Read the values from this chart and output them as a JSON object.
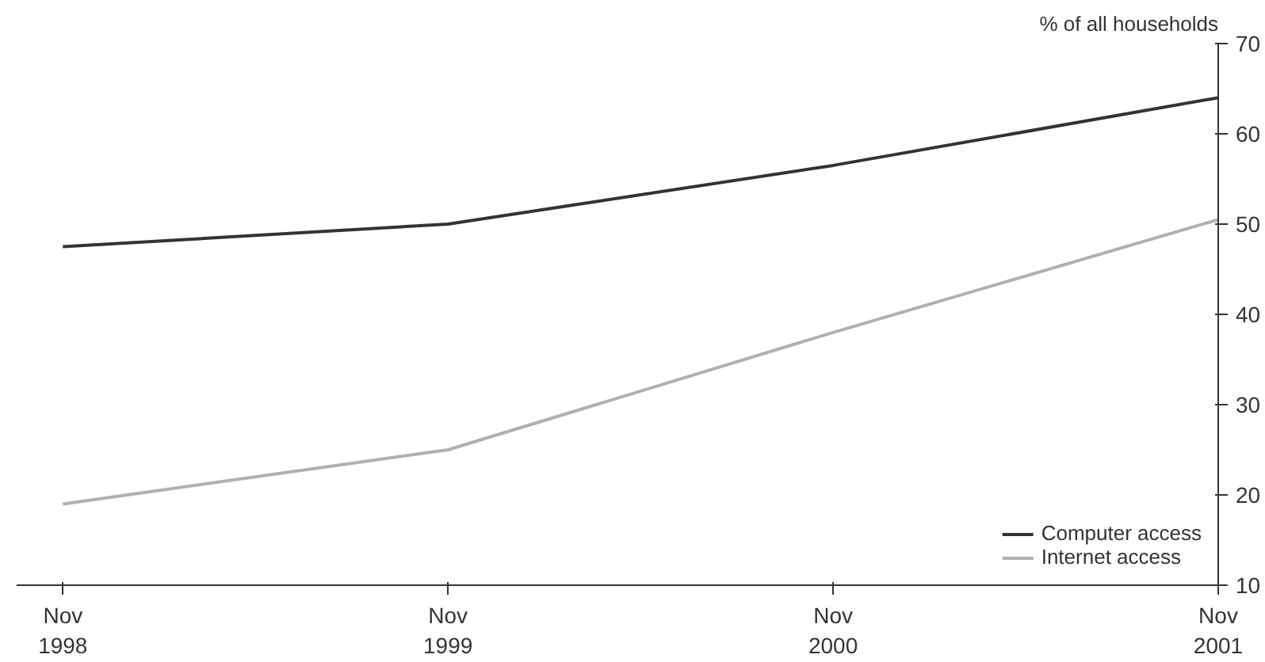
{
  "chart_data": {
    "type": "line",
    "ylabel": "% of all households",
    "categories": [
      "Nov\n1998",
      "Nov\n1999",
      "Nov\n2000",
      "Nov\n2001"
    ],
    "series": [
      {
        "name": "Computer access",
        "color": "#333333",
        "values": [
          47.5,
          50,
          56.5,
          64
        ]
      },
      {
        "name": "Internet access",
        "color": "#b0b0b0",
        "values": [
          19,
          25,
          38,
          50.5
        ]
      }
    ],
    "ylim": [
      10,
      70
    ],
    "yticks": [
      10,
      20,
      30,
      40,
      50,
      60,
      70
    ],
    "grid": false,
    "legend": "bottom right",
    "marker": "none",
    "line_style": "solid"
  }
}
